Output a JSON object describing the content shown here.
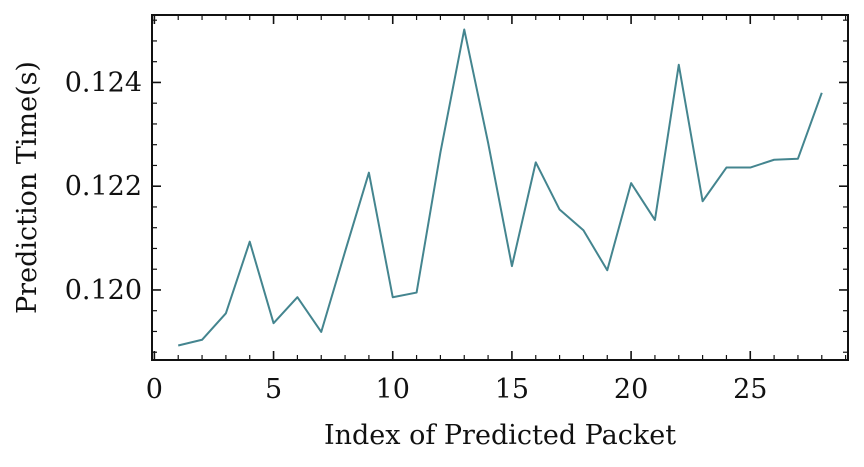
{
  "chart_data": {
    "type": "line",
    "title": "",
    "xlabel": "Index of Predicted Packet",
    "ylabel": "Prediction Time(s)",
    "xlim": [
      -0.1,
      29.1
    ],
    "ylim": [
      0.11865,
      0.1253
    ],
    "x_ticks": [
      0,
      5,
      10,
      15,
      20,
      25
    ],
    "x_tick_labels": [
      "0",
      "5",
      "10",
      "15",
      "20",
      "25"
    ],
    "y_ticks": [
      0.12,
      0.122,
      0.124
    ],
    "y_tick_labels": [
      "0.120",
      "0.122",
      "0.124"
    ],
    "grid": false,
    "series": [
      {
        "color": "#44858f",
        "x": [
          1,
          2,
          3,
          4,
          5,
          6,
          7,
          8,
          9,
          10,
          11,
          12,
          13,
          14,
          15,
          16,
          17,
          18,
          19,
          20,
          21,
          22,
          23,
          24,
          25,
          26,
          27,
          28
        ],
        "y": [
          0.11893,
          0.11904,
          0.11955,
          0.12093,
          0.11936,
          0.11986,
          0.11919,
          0.12074,
          0.12226,
          0.11986,
          0.11995,
          0.12265,
          0.12502,
          0.12284,
          0.12046,
          0.12246,
          0.12155,
          0.12115,
          0.12038,
          0.12206,
          0.12135,
          0.12434,
          0.12171,
          0.12236,
          0.12236,
          0.12251,
          0.12253,
          0.1238
        ]
      }
    ]
  }
}
